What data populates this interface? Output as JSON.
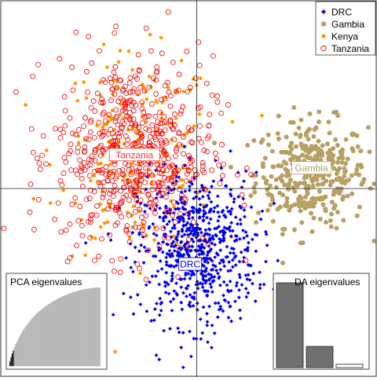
{
  "chart_data": {
    "type": "scatter",
    "title": "",
    "xlabel": "",
    "ylabel": "",
    "grid": false,
    "legend_position": "top-right",
    "xlim": [
      -6,
      5.5
    ],
    "ylim": [
      -5,
      5
    ],
    "axes_cross": [
      0,
      0
    ],
    "series": [
      {
        "name": "DRC",
        "marker": "diamond",
        "color": "#0000ee",
        "n": 700,
        "center": [
          0,
          -1.6
        ],
        "spread": [
          0.9,
          1.0
        ]
      },
      {
        "name": "Gambia",
        "marker": "filled-circle",
        "color": "#b8a064",
        "n": 360,
        "center": [
          3.5,
          0.4
        ],
        "spread": [
          0.85,
          0.7
        ]
      },
      {
        "name": "Kenya",
        "marker": "filled-circle-small",
        "color": "#ff9900",
        "n": 200,
        "center": [
          -1.8,
          0.9
        ],
        "spread": [
          1.2,
          1.3
        ]
      },
      {
        "name": "Tanzania",
        "marker": "open-circle",
        "color": "#ee0000",
        "n": 620,
        "center": [
          -1.9,
          0.9
        ],
        "spread": [
          1.2,
          1.3
        ]
      }
    ],
    "group_labels": [
      {
        "text": "Tanzania",
        "x": -1.9,
        "y": 0.9,
        "color": "#ee3333"
      },
      {
        "text": "Gambia",
        "x": 3.5,
        "y": 0.55,
        "color": "#b8a064"
      },
      {
        "text": "DRC",
        "x": -0.2,
        "y": -2.0,
        "color": "#0000ee"
      }
    ],
    "insets": [
      {
        "title": "PCA eigenvalues",
        "position": "bottom-left",
        "type": "bar",
        "values": [
          1.0,
          0.86,
          0.76,
          0.68,
          0.62,
          0.57,
          0.53,
          0.5,
          0.47,
          0.44,
          0.42,
          0.4,
          0.38,
          0.36,
          0.34,
          0.33,
          0.32,
          0.3,
          0.29,
          0.28,
          0.27,
          0.26,
          0.25,
          0.24,
          0.23,
          0.22,
          0.21,
          0.2,
          0.195,
          0.19,
          0.185,
          0.18,
          0.175,
          0.17,
          0.165,
          0.16,
          0.155,
          0.15,
          0.145,
          0.14,
          0.136,
          0.132,
          0.128,
          0.124,
          0.12,
          0.116,
          0.112,
          0.108,
          0.104,
          0.1,
          0.097,
          0.094,
          0.091,
          0.088,
          0.085,
          0.082,
          0.079,
          0.076,
          0.073,
          0.07,
          0.067,
          0.064,
          0.061,
          0.058,
          0.055,
          0.052,
          0.049,
          0.046,
          0.043,
          0.04,
          0.037,
          0.034,
          0.031,
          0.028,
          0.025,
          0.022,
          0.019,
          0.016,
          0.013,
          0.01
        ],
        "retained": 4,
        "colors": {
          "retained": "#000000",
          "other": "#bdbdbd"
        }
      },
      {
        "title": "DA eigenvalues",
        "position": "bottom-right",
        "type": "bar",
        "values": [
          1.0,
          0.25,
          0.04
        ],
        "colors": {
          "bars": [
            "#707070",
            "#707070",
            "#ffffff"
          ]
        }
      }
    ]
  }
}
